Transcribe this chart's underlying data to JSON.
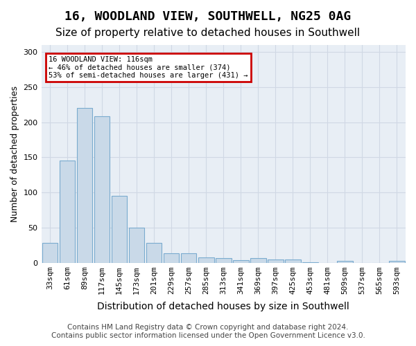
{
  "title": "16, WOODLAND VIEW, SOUTHWELL, NG25 0AG",
  "subtitle": "Size of property relative to detached houses in Southwell",
  "xlabel": "Distribution of detached houses by size in Southwell",
  "ylabel": "Number of detached properties",
  "categories": [
    "33sqm",
    "61sqm",
    "89sqm",
    "117sqm",
    "145sqm",
    "173sqm",
    "201sqm",
    "229sqm",
    "257sqm",
    "285sqm",
    "313sqm",
    "341sqm",
    "369sqm",
    "397sqm",
    "425sqm",
    "453sqm",
    "481sqm",
    "509sqm",
    "537sqm",
    "565sqm",
    "593sqm"
  ],
  "values": [
    28,
    145,
    220,
    208,
    95,
    50,
    28,
    13,
    13,
    7,
    6,
    3,
    6,
    4,
    4,
    1,
    0,
    2,
    0,
    0,
    2
  ],
  "bar_color": "#c9d9e8",
  "bar_edge_color": "#7aabcf",
  "annotation_box_text": "16 WOODLAND VIEW: 116sqm\n← 46% of detached houses are smaller (374)\n53% of semi-detached houses are larger (431) →",
  "annotation_box_color": "#ffffff",
  "annotation_box_edge_color": "#cc0000",
  "ylim": [
    0,
    310
  ],
  "yticks": [
    0,
    50,
    100,
    150,
    200,
    250,
    300
  ],
  "grid_color": "#d0d8e4",
  "bg_color": "#e8eef5",
  "footer_line1": "Contains HM Land Registry data © Crown copyright and database right 2024.",
  "footer_line2": "Contains public sector information licensed under the Open Government Licence v3.0.",
  "property_bar_index": 2,
  "title_fontsize": 13,
  "subtitle_fontsize": 11,
  "xlabel_fontsize": 10,
  "ylabel_fontsize": 9,
  "tick_fontsize": 8,
  "footer_fontsize": 7.5
}
